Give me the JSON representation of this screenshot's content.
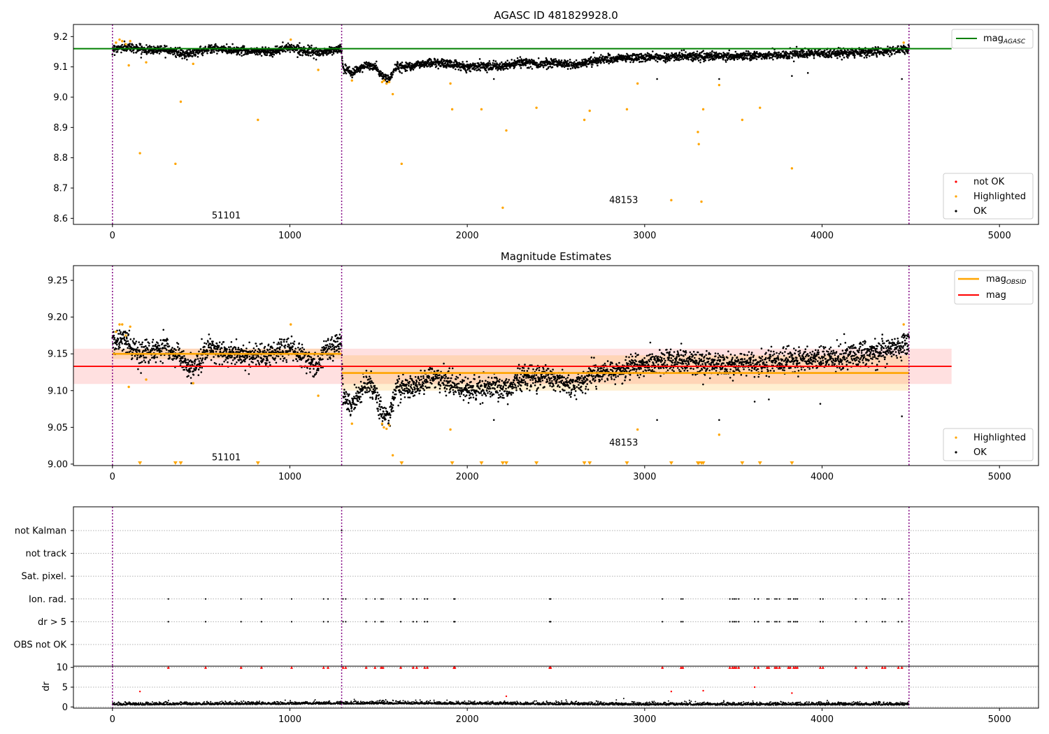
{
  "chart_data": [
    {
      "type": "scatter",
      "title": "AGASC ID 481829928.0",
      "xlim": [
        -220,
        5220
      ],
      "ylim": [
        8.58,
        9.24
      ],
      "xticks": [
        0,
        1000,
        2000,
        3000,
        4000,
        5000
      ],
      "yticks": [
        8.6,
        8.7,
        8.8,
        8.9,
        9.0,
        9.1,
        9.2
      ],
      "xtick_labels": [
        "0",
        "1000",
        "2000",
        "3000",
        "4000",
        "5000"
      ],
      "ytick_labels": [
        "8.6",
        "8.7",
        "8.8",
        "8.9",
        "9.0",
        "9.1",
        "9.2"
      ],
      "obs_boundaries": [
        0,
        1292,
        4490
      ],
      "annotations": [
        {
          "text": "51101",
          "x": 560,
          "y": 8.6
        },
        {
          "text": "48153",
          "x": 2800,
          "y": 8.65
        }
      ],
      "hlines": [
        {
          "name": "mag_AGASC",
          "y": 9.16,
          "color": "#008000",
          "x_start": -220,
          "x_end": 4730
        }
      ],
      "ok_trend": [
        [
          0,
          9.16
        ],
        [
          100,
          9.165
        ],
        [
          200,
          9.155
        ],
        [
          300,
          9.16
        ],
        [
          400,
          9.14
        ],
        [
          550,
          9.16
        ],
        [
          700,
          9.155
        ],
        [
          900,
          9.15
        ],
        [
          1000,
          9.165
        ],
        [
          1150,
          9.145
        ],
        [
          1290,
          9.16
        ],
        [
          1300,
          9.095
        ],
        [
          1350,
          9.08
        ],
        [
          1420,
          9.105
        ],
        [
          1480,
          9.1
        ],
        [
          1520,
          9.07
        ],
        [
          1560,
          9.06
        ],
        [
          1600,
          9.1
        ],
        [
          1700,
          9.105
        ],
        [
          1800,
          9.115
        ],
        [
          1900,
          9.11
        ],
        [
          2000,
          9.1
        ],
        [
          2100,
          9.105
        ],
        [
          2200,
          9.1
        ],
        [
          2300,
          9.115
        ],
        [
          2400,
          9.11
        ],
        [
          2500,
          9.115
        ],
        [
          2600,
          9.105
        ],
        [
          2700,
          9.12
        ],
        [
          2800,
          9.125
        ],
        [
          2900,
          9.13
        ],
        [
          3000,
          9.13
        ],
        [
          3200,
          9.135
        ],
        [
          3500,
          9.135
        ],
        [
          3800,
          9.14
        ],
        [
          4100,
          9.145
        ],
        [
          4300,
          9.15
        ],
        [
          4490,
          9.16
        ]
      ],
      "highlighted_points": [
        [
          20,
          9.18
        ],
        [
          40,
          9.19
        ],
        [
          55,
          9.185
        ],
        [
          75,
          9.175
        ],
        [
          92,
          9.105
        ],
        [
          100,
          9.185
        ],
        [
          155,
          8.815
        ],
        [
          190,
          9.115
        ],
        [
          355,
          8.78
        ],
        [
          385,
          8.985
        ],
        [
          455,
          9.11
        ],
        [
          820,
          8.925
        ],
        [
          1005,
          9.19
        ],
        [
          1160,
          9.09
        ],
        [
          1350,
          9.055
        ],
        [
          1520,
          9.05
        ],
        [
          1530,
          9.055
        ],
        [
          1545,
          9.045
        ],
        [
          1560,
          9.05
        ],
        [
          1580,
          9.01
        ],
        [
          1630,
          8.78
        ],
        [
          1905,
          9.045
        ],
        [
          1915,
          8.96
        ],
        [
          2080,
          8.96
        ],
        [
          2200,
          8.635
        ],
        [
          2220,
          8.89
        ],
        [
          2390,
          8.965
        ],
        [
          2660,
          8.925
        ],
        [
          2690,
          8.955
        ],
        [
          2900,
          8.96
        ],
        [
          2960,
          9.045
        ],
        [
          3150,
          8.66
        ],
        [
          3300,
          8.885
        ],
        [
          3305,
          8.845
        ],
        [
          3320,
          8.655
        ],
        [
          3330,
          8.96
        ],
        [
          3420,
          9.04
        ],
        [
          3550,
          8.925
        ],
        [
          3650,
          8.965
        ],
        [
          3830,
          8.765
        ],
        [
          4460,
          9.18
        ]
      ],
      "series": [
        {
          "name": "not OK",
          "color": "#ff0000"
        },
        {
          "name": "Highlighted",
          "color": "#ffa500"
        },
        {
          "name": "OK",
          "color": "#000000"
        }
      ],
      "legend": {
        "upper": "top-right",
        "lower": "bottom-right"
      }
    },
    {
      "type": "scatter",
      "title": "Magnitude Estimates",
      "xlim": [
        -220,
        5220
      ],
      "ylim": [
        8.998,
        9.27
      ],
      "xticks": [
        0,
        1000,
        2000,
        3000,
        4000,
        5000
      ],
      "yticks": [
        9.0,
        9.05,
        9.1,
        9.15,
        9.2,
        9.25
      ],
      "xtick_labels": [
        "0",
        "1000",
        "2000",
        "3000",
        "4000",
        "5000"
      ],
      "ytick_labels": [
        "9.00",
        "9.05",
        "9.10",
        "9.15",
        "9.20",
        "9.25"
      ],
      "obs_boundaries": [
        0,
        1292,
        4490
      ],
      "annotations": [
        {
          "text": "51101",
          "x": 560,
          "y": 9.005
        },
        {
          "text": "48153",
          "x": 2800,
          "y": 9.025
        }
      ],
      "mag": {
        "y": 9.133,
        "band": [
          9.109,
          9.157
        ],
        "x_start": -220,
        "x_end": 4730,
        "color": "#ff0000"
      },
      "mag_obsid": [
        {
          "x_start": 0,
          "x_end": 1292,
          "y": 9.15,
          "band": [
            9.143,
            9.157
          ]
        },
        {
          "x_start": 1292,
          "x_end": 4490,
          "y": 9.124,
          "band": [
            9.1,
            9.148
          ]
        }
      ],
      "ok_trend": [
        [
          0,
          9.165
        ],
        [
          60,
          9.17
        ],
        [
          150,
          9.15
        ],
        [
          300,
          9.16
        ],
        [
          400,
          9.14
        ],
        [
          450,
          9.13
        ],
        [
          550,
          9.16
        ],
        [
          700,
          9.145
        ],
        [
          900,
          9.15
        ],
        [
          1000,
          9.16
        ],
        [
          1100,
          9.14
        ],
        [
          1150,
          9.13
        ],
        [
          1200,
          9.155
        ],
        [
          1290,
          9.165
        ],
        [
          1300,
          9.095
        ],
        [
          1350,
          9.08
        ],
        [
          1420,
          9.11
        ],
        [
          1480,
          9.1
        ],
        [
          1520,
          9.07
        ],
        [
          1560,
          9.065
        ],
        [
          1600,
          9.1
        ],
        [
          1700,
          9.105
        ],
        [
          1800,
          9.12
        ],
        [
          1900,
          9.11
        ],
        [
          2000,
          9.1
        ],
        [
          2100,
          9.105
        ],
        [
          2200,
          9.1
        ],
        [
          2300,
          9.115
        ],
        [
          2400,
          9.12
        ],
        [
          2500,
          9.115
        ],
        [
          2600,
          9.105
        ],
        [
          2700,
          9.12
        ],
        [
          2800,
          9.125
        ],
        [
          2900,
          9.13
        ],
        [
          3000,
          9.135
        ],
        [
          3200,
          9.14
        ],
        [
          3500,
          9.135
        ],
        [
          3800,
          9.14
        ],
        [
          4100,
          9.145
        ],
        [
          4300,
          9.15
        ],
        [
          4490,
          9.165
        ]
      ],
      "highlighted_points": [
        [
          20,
          9.18
        ],
        [
          40,
          9.19
        ],
        [
          55,
          9.19
        ],
        [
          75,
          9.175
        ],
        [
          92,
          9.105
        ],
        [
          100,
          9.187
        ],
        [
          190,
          9.115
        ],
        [
          455,
          9.11
        ],
        [
          1005,
          9.19
        ],
        [
          1160,
          9.093
        ],
        [
          1350,
          9.055
        ],
        [
          1520,
          9.055
        ],
        [
          1530,
          9.05
        ],
        [
          1545,
          9.048
        ],
        [
          1560,
          9.053
        ],
        [
          1580,
          9.012
        ],
        [
          1905,
          9.047
        ],
        [
          2960,
          9.047
        ],
        [
          3420,
          9.04
        ],
        [
          4460,
          9.19
        ]
      ],
      "below_axis_markers_x": [
        155,
        355,
        385,
        820,
        1630,
        1915,
        2080,
        2200,
        2220,
        2390,
        2660,
        2690,
        2900,
        3150,
        3300,
        3305,
        3320,
        3330,
        3550,
        3650,
        3830
      ],
      "series": [
        {
          "name": "Highlighted",
          "color": "#ffa500"
        },
        {
          "name": "OK",
          "color": "#000000"
        }
      ],
      "legend": {
        "upper": "top-right",
        "lower": "bottom-right"
      }
    },
    {
      "type": "scatter",
      "title": "",
      "xlim": [
        -220,
        5220
      ],
      "categories": [
        "not Kalman",
        "not track",
        "Sat. pixel.",
        "Ion. rad.",
        "dr > 5",
        "OBS not OK"
      ],
      "flag_events": {
        "not Kalman": [
          1292
        ],
        "not track": [],
        "Sat. pixel.": [],
        "Ion. rad.": [
          315,
          525,
          725,
          840,
          1010,
          1190,
          1215,
          1300,
          1315,
          1430,
          1480,
          1515,
          1525,
          1625,
          1695,
          1715,
          1760,
          1775,
          1925,
          1930,
          2465,
          2470,
          3100,
          3205,
          3215,
          3480,
          3495,
          3505,
          3515,
          3530,
          3620,
          3640,
          3690,
          3700,
          3735,
          3745,
          3760,
          3810,
          3820,
          3840,
          3850,
          3860,
          3990,
          4005,
          4190,
          4250,
          4340,
          4355,
          4430,
          4450
        ],
        "dr > 5": [
          315,
          525,
          725,
          840,
          1010,
          1190,
          1215,
          1300,
          1315,
          1430,
          1480,
          1515,
          1525,
          1625,
          1695,
          1715,
          1760,
          1775,
          1925,
          1930,
          2465,
          2470,
          3100,
          3205,
          3215,
          3480,
          3495,
          3505,
          3515,
          3530,
          3620,
          3640,
          3690,
          3700,
          3735,
          3745,
          3760,
          3810,
          3820,
          3840,
          3850,
          3860,
          3990,
          4005,
          4190,
          4250,
          4340,
          4355,
          4430,
          4450
        ],
        "OBS not OK": []
      },
      "obs_boundaries": [
        0,
        1292,
        4490
      ]
    },
    {
      "type": "scatter",
      "title": "",
      "ylabel": "dr",
      "xlim": [
        -220,
        5220
      ],
      "ylim": [
        -0.3,
        10.3
      ],
      "xticks": [
        0,
        1000,
        2000,
        3000,
        4000,
        5000
      ],
      "yticks": [
        0,
        5,
        10
      ],
      "xtick_labels": [
        "0",
        "1000",
        "2000",
        "3000",
        "4000",
        "5000"
      ],
      "ytick_labels": [
        "0",
        "5",
        "10"
      ],
      "dr_baseline": [
        [
          0,
          0.6
        ],
        [
          500,
          0.7
        ],
        [
          1000,
          0.8
        ],
        [
          1500,
          0.9
        ],
        [
          2000,
          0.8
        ],
        [
          2500,
          0.7
        ],
        [
          3000,
          0.6
        ],
        [
          3500,
          0.6
        ],
        [
          4000,
          0.6
        ],
        [
          4490,
          0.6
        ]
      ],
      "dr_clipped_x": [
        315,
        525,
        725,
        840,
        1010,
        1190,
        1215,
        1300,
        1315,
        1430,
        1480,
        1515,
        1525,
        1625,
        1695,
        1715,
        1760,
        1775,
        1925,
        1930,
        2465,
        2470,
        3100,
        3205,
        3215,
        3480,
        3495,
        3505,
        3515,
        3530,
        3620,
        3640,
        3690,
        3700,
        3735,
        3745,
        3760,
        3810,
        3820,
        3840,
        3850,
        3860,
        3990,
        4005,
        4190,
        4250,
        4340,
        4355,
        4430,
        4450
      ],
      "dr_outliers": [
        [
          155,
          3.9
        ],
        [
          3150,
          3.9
        ],
        [
          3330,
          4.1
        ],
        [
          3620,
          5.0
        ],
        [
          3830,
          3.5
        ],
        [
          2220,
          2.7
        ]
      ],
      "obs_boundaries": [
        0,
        1292,
        4490
      ]
    }
  ],
  "legend_labels": {
    "mag_agasc_main": "mag",
    "mag_agasc_sub": "AGASC",
    "mag_obsid_main": "mag",
    "mag_obsid_sub": "OBSID",
    "mag": "mag"
  }
}
